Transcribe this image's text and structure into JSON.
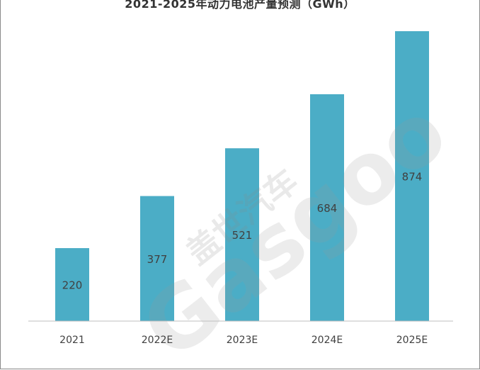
{
  "chart_data": {
    "type": "bar",
    "title": "2021-2025年动力电池产量预测（GWh）",
    "categories": [
      "2021",
      "2022E",
      "2023E",
      "2024E",
      "2025E"
    ],
    "values": [
      220,
      377,
      521,
      684,
      874
    ],
    "ylim": [
      0,
      900
    ],
    "grid": false,
    "bar_color": "#4badc6",
    "axis_color": "#bfbfbf"
  },
  "watermark": {
    "cn": "盖世汽车",
    "en": "Gasgoo"
  }
}
